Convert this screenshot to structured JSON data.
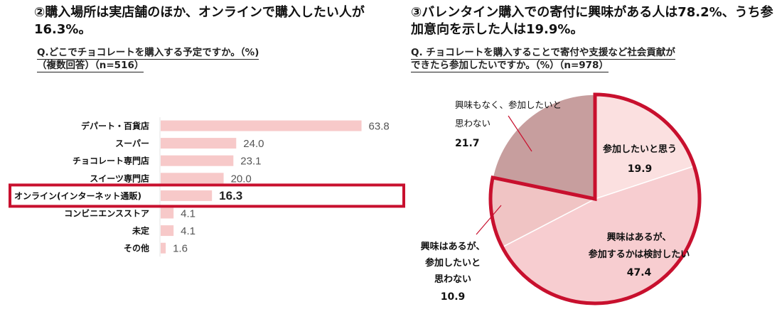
{
  "left": {
    "headline": "②購入場所は実店舗のほか、オンラインで購入したい人が16.3%。",
    "question_line1": "Q.どこでチョコレートを購入する予定ですか。（%)",
    "question_line2": "（複数回答）（n=516）"
  },
  "right": {
    "headline": "③バレンタイン購入での寄付に興味がある人は78.2%、うち参加意向を示した人は19.9%。",
    "question_line1": "Q. チョコレートを購入することで寄付や支援など社会貢献が",
    "question_line2": "できたら参加したいですか。（%）（n=978）"
  },
  "colors": {
    "bar": "#f7c9c9",
    "highlight_border": "#c8102e",
    "pie_participate": "#fbe0e0",
    "pie_considering": "#f7cdd0",
    "pie_no_participate": "#f0c4c4",
    "pie_no_interest": "#c79e9e",
    "pie_interest_border": "#c8102e"
  },
  "chart_data": [
    {
      "type": "bar",
      "orientation": "horizontal",
      "categories": [
        "デパート・百貨店",
        "スーパー",
        "チョコレート専門店",
        "スイーツ専門店",
        "オンライン(インターネット通販)",
        "コンビニエンスストア",
        "未定",
        "その他"
      ],
      "values": [
        63.8,
        24.0,
        23.1,
        20.0,
        16.3,
        4.1,
        4.1,
        1.6
      ],
      "value_labels": [
        "63.8",
        "24.0",
        "23.1",
        "20.0",
        "16.3",
        "4.1",
        "4.1",
        "1.6"
      ],
      "highlight_index": 4,
      "xlim": [
        0,
        70
      ]
    },
    {
      "type": "pie",
      "slices": [
        {
          "label_lines": [
            "参加したいと思う"
          ],
          "value": 19.9,
          "value_label": "19.9"
        },
        {
          "label_lines": [
            "興味はあるが、",
            "参加するかは検討したい"
          ],
          "value": 47.4,
          "value_label": "47.4"
        },
        {
          "label_lines": [
            "興味はあるが、",
            "参加したいと",
            "思わない"
          ],
          "value": 10.9,
          "value_label": "10.9"
        },
        {
          "label_lines": [
            "興味もなく、参加したいと",
            "思わない"
          ],
          "value": 21.7,
          "value_label": "21.7"
        }
      ],
      "start_angle_deg": 0,
      "direction": "clockwise"
    }
  ]
}
